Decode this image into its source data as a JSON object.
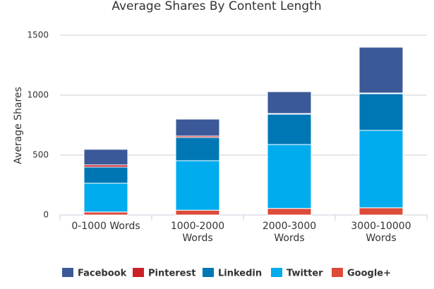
{
  "chart_data": {
    "type": "stacked_bar",
    "title": "Average Shares By Content Length",
    "y_label": "Average Shares",
    "categories": [
      "0-1000 Words",
      "1000-2000 Words",
      "2000-3000 Words",
      "3000-10000 Words"
    ],
    "series": [
      {
        "name": "Facebook",
        "color": "#3b5998",
        "values": [
          130,
          141,
          182,
          382
        ]
      },
      {
        "name": "Pinterest",
        "color": "#cb2027",
        "values": [
          18,
          12,
          6,
          6
        ]
      },
      {
        "name": "Linkedin",
        "color": "#0077b5",
        "values": [
          135,
          194,
          253,
          306
        ]
      },
      {
        "name": "Twitter",
        "color": "#00aced",
        "values": [
          240,
          413,
          533,
          646
        ]
      },
      {
        "name": "Google+",
        "color": "#dd4b39",
        "values": [
          25,
          40,
          55,
          60
        ]
      }
    ],
    "ylim": [
      0,
      1500
    ],
    "yticks": [
      0,
      500,
      1000,
      1500
    ],
    "grid": true,
    "legend": "bottom"
  }
}
